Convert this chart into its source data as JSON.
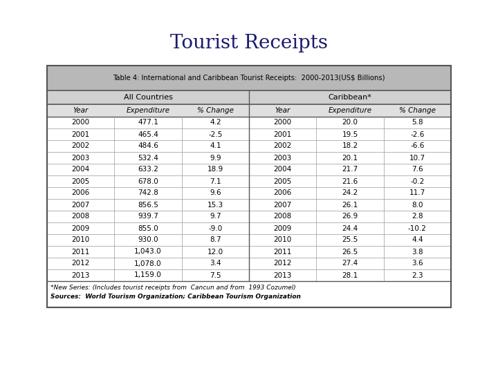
{
  "title": "Tourist Receipts",
  "table_title": "Table 4: International and Caribbean Tourist Receipts:  2000-2013(US$ Billions)",
  "all_countries_header": "All Countries",
  "caribbean_header": "Caribbean*",
  "col_headers": [
    "Year",
    "Expenditure",
    "% Change",
    "Year",
    "Expenditure",
    "% Change"
  ],
  "rows": [
    [
      "2000",
      "477.1",
      "4.2",
      "2000",
      "20.0",
      "5.8"
    ],
    [
      "2001",
      "465.4",
      "-2.5",
      "2001",
      "19.5",
      "-2.6"
    ],
    [
      "2002",
      "484.6",
      "4.1",
      "2002",
      "18.2",
      "-6.6"
    ],
    [
      "2003",
      "532.4",
      "9.9",
      "2003",
      "20.1",
      "10.7"
    ],
    [
      "2004",
      "633.2",
      "18.9",
      "2004",
      "21.7",
      "7.6"
    ],
    [
      "2005",
      "678.0",
      "7.1",
      "2005",
      "21.6",
      "-0.2"
    ],
    [
      "2006",
      "742.8",
      "9.6",
      "2006",
      "24.2",
      "11.7"
    ],
    [
      "2007",
      "856.5",
      "15.3",
      "2007",
      "26.1",
      "8.0"
    ],
    [
      "2008",
      "939.7",
      "9.7",
      "2008",
      "26.9",
      "2.8"
    ],
    [
      "2009",
      "855.0",
      "-9.0",
      "2009",
      "24.4",
      "-10.2"
    ],
    [
      "2010",
      "930.0",
      "8.7",
      "2010",
      "25.5",
      "4.4"
    ],
    [
      "2011",
      "1,043.0",
      "12.0",
      "2011",
      "26.5",
      "3.8"
    ],
    [
      "2012",
      "1,078.0",
      "3.4",
      "2012",
      "27.4",
      "3.6"
    ],
    [
      "2013",
      "1,159.0",
      "7.5",
      "2013",
      "28.1",
      "2.3"
    ]
  ],
  "footnote": "*New Series: (Includes tourist receipts from  Cancun and from  1993 Cozumel)",
  "sources": "Sources:  World Tourism Organization; Caribbean Tourism Organization",
  "title_fontsize": 20,
  "header_bg": "#b8b8b8",
  "subheader_bg": "#d0d0d0",
  "col_header_bg": "#e0e0e0",
  "title_color": "#1a1a6e",
  "text_color": "#000000",
  "table_border_color": "#555555"
}
